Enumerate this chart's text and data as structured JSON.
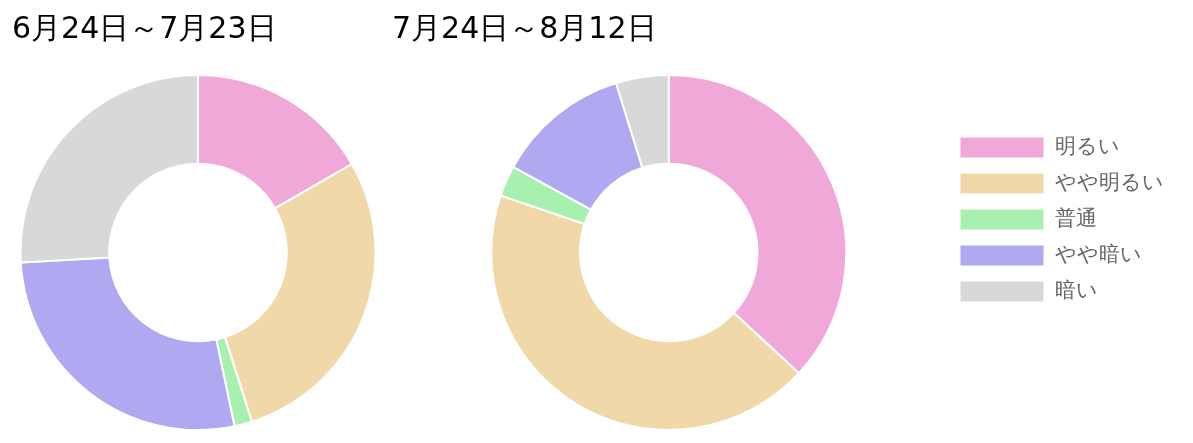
{
  "chart_data": [
    {
      "type": "donut",
      "title": "6月24日～7月23日",
      "categories": [
        null,
        null,
        null,
        null,
        null
      ],
      "values": [
        16.7,
        28.4,
        1.6,
        27.4,
        25.9
      ],
      "colors": [
        "#f0a8d8",
        "#f0d8a8",
        "#a8f0b0",
        "#b0a8f0",
        "#d8d8d8"
      ],
      "legend": false
    },
    {
      "type": "donut",
      "title": "7月24日～8月12日",
      "categories": [
        "明るい",
        "やや明るい",
        "普通",
        "やや暗い",
        "暗い"
      ],
      "values": [
        36.9,
        43.3,
        2.8,
        12.2,
        4.8
      ],
      "colors": [
        "#f0a8d8",
        "#f0d8a8",
        "#a8f0b0",
        "#b0a8f0",
        "#d8d8d8"
      ],
      "legend": "right"
    }
  ]
}
